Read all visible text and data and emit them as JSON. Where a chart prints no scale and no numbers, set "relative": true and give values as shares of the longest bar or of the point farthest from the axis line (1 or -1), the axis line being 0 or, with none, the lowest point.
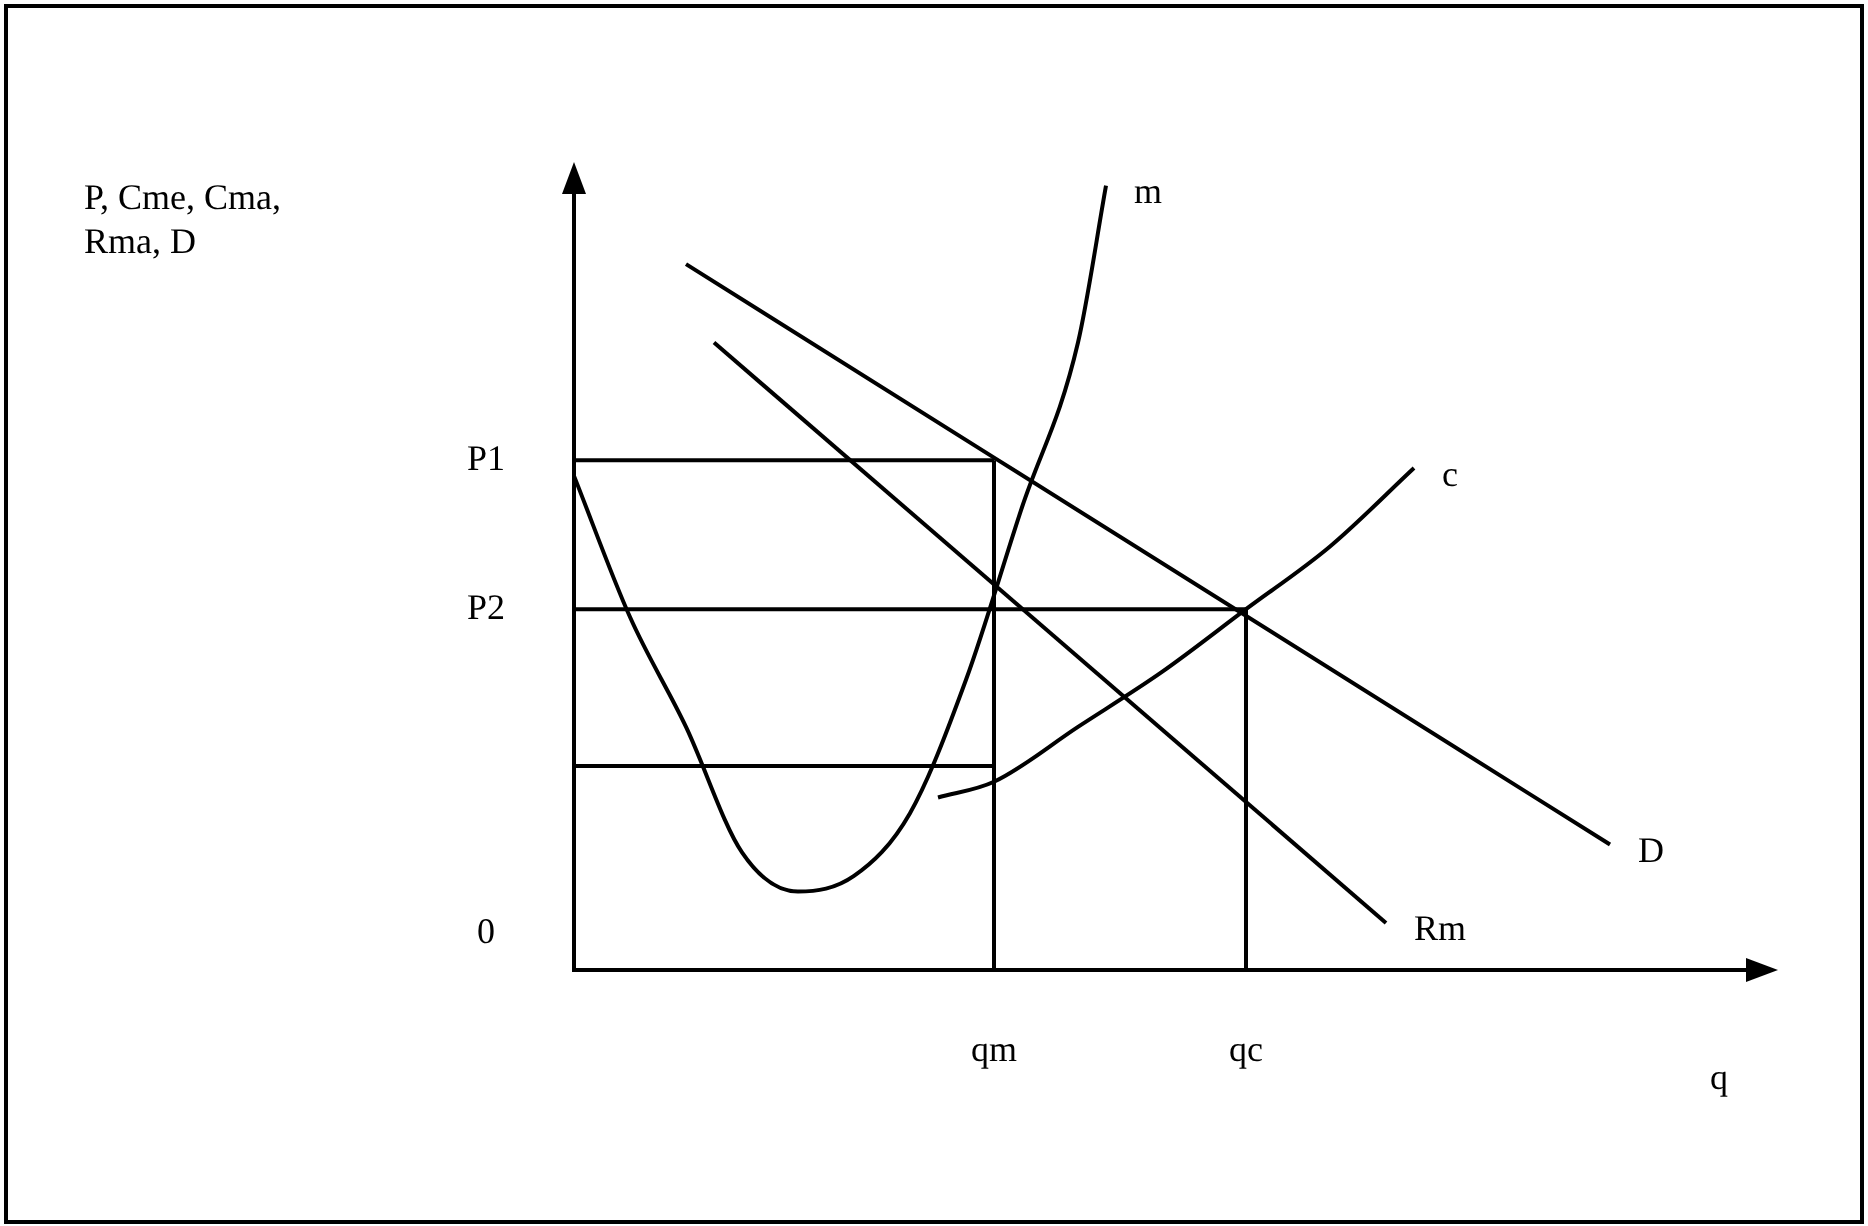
{
  "chart_data": {
    "type": "line",
    "xlabel": "q",
    "relative": true,
    "grid": false,
    "legend": false,
    "ref_lines": [
      {
        "axis": "x",
        "value": "qm"
      },
      {
        "axis": "x",
        "value": "qc"
      }
    ],
    "categories": [
      null,
      null,
      null,
      null,
      null,
      null,
      null,
      null,
      null,
      null,
      null,
      null,
      null,
      null,
      null,
      "qm",
      null,
      null,
      null,
      null,
      null,
      null,
      null,
      null,
      "qc",
      null,
      null,
      null,
      null,
      null,
      null,
      null,
      null,
      null,
      null,
      null,
      null,
      null,
      null,
      null,
      null,
      null,
      null
    ],
    "annotations": [
      "P, Cme, Cma, Rma, D",
      "0"
    ],
    "series": [
      {
        "name": "D",
        "color": "#000000",
        "values": [
          null,
          null,
          null,
          null,
          0.9,
          null,
          null,
          null,
          null,
          null,
          null,
          null,
          null,
          null,
          null,
          null,
          null,
          null,
          null,
          null,
          null,
          null,
          null,
          null,
          null,
          null,
          null,
          null,
          null,
          null,
          null,
          null,
          null,
          null,
          null,
          null,
          null,
          0.16,
          null,
          null,
          null,
          null,
          null
        ]
      },
      {
        "name": "Rm",
        "color": "#000000",
        "values": [
          null,
          null,
          null,
          null,
          null,
          0.8,
          null,
          null,
          null,
          null,
          null,
          null,
          null,
          null,
          null,
          null,
          null,
          null,
          null,
          null,
          null,
          null,
          null,
          null,
          null,
          null,
          null,
          null,
          null,
          0.06,
          null,
          null,
          null,
          null,
          null,
          null,
          null,
          null,
          null,
          null,
          null,
          null,
          null
        ]
      },
      {
        "name": "m",
        "color": "#000000",
        "values": [
          0.63,
          null,
          0.45,
          null,
          0.31,
          null,
          0.15,
          null,
          0.1,
          null,
          0.12,
          null,
          0.2,
          null,
          0.37,
          null,
          0.59,
          null,
          0.8,
          1.0,
          null,
          null,
          null,
          null,
          null,
          null,
          null,
          null,
          null,
          null,
          null,
          null,
          null,
          null,
          null,
          null,
          null,
          null,
          null,
          null,
          null,
          null,
          null
        ]
      },
      {
        "name": "c",
        "color": "#000000",
        "values": [
          null,
          null,
          null,
          null,
          null,
          null,
          null,
          null,
          null,
          null,
          null,
          null,
          null,
          0.22,
          null,
          0.24,
          null,
          null,
          0.31,
          null,
          null,
          0.38,
          null,
          null,
          0.46,
          null,
          null,
          0.54,
          null,
          null,
          0.64,
          null,
          null,
          null,
          null,
          null,
          null,
          null,
          null,
          null,
          null,
          null,
          null
        ]
      },
      {
        "name": "P1",
        "color": "#000000",
        "values": [
          0.65,
          null,
          null,
          null,
          null,
          null,
          null,
          null,
          null,
          null,
          null,
          null,
          null,
          null,
          null,
          0.65,
          null,
          null,
          null,
          null,
          null,
          null,
          null,
          null,
          null,
          null,
          null,
          null,
          null,
          null,
          null,
          null,
          null,
          null,
          null,
          null,
          null,
          null,
          null,
          null,
          null,
          null,
          null
        ]
      },
      {
        "name": "P2",
        "color": "#000000",
        "values": [
          0.46,
          null,
          null,
          null,
          null,
          null,
          null,
          null,
          null,
          null,
          null,
          null,
          null,
          null,
          null,
          null,
          null,
          null,
          null,
          null,
          null,
          null,
          null,
          null,
          0.46,
          null,
          null,
          null,
          null,
          null,
          null,
          null,
          null,
          null,
          null,
          null,
          null,
          null,
          null,
          null,
          null,
          null,
          null
        ]
      },
      {
        "color": "#000000",
        "values": [
          0.26,
          null,
          null,
          null,
          null,
          null,
          null,
          null,
          null,
          null,
          null,
          null,
          null,
          null,
          null,
          0.26,
          null,
          null,
          null,
          null,
          null,
          null,
          null,
          null,
          null,
          null,
          null,
          null,
          null,
          null,
          null,
          null,
          null,
          null,
          null,
          null,
          null,
          null,
          null,
          null,
          null,
          null,
          null
        ]
      }
    ]
  }
}
